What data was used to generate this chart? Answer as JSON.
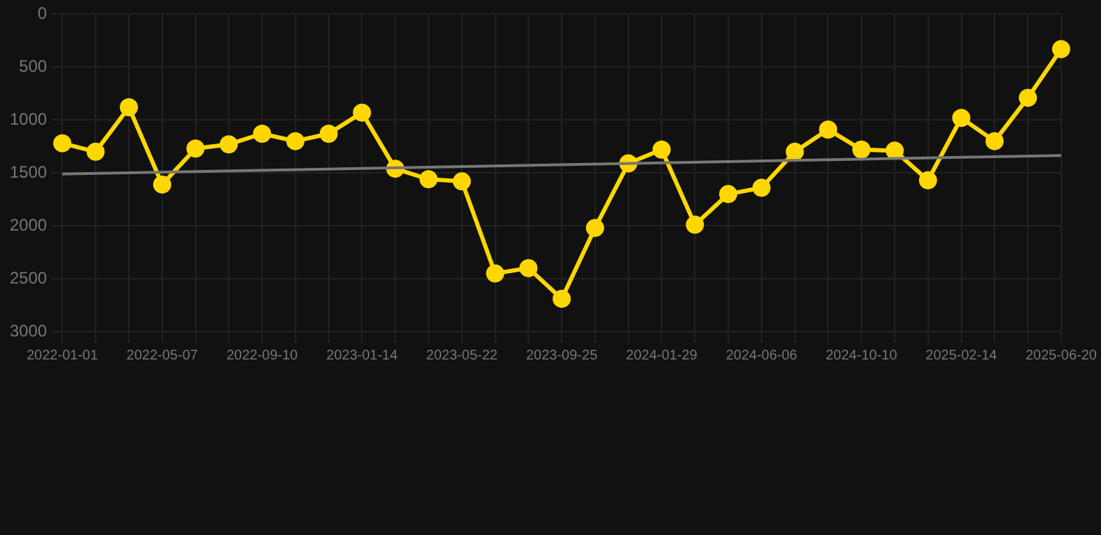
{
  "chart_data": {
    "type": "line",
    "categories": [
      "2022-01-01",
      null,
      null,
      "2022-05-07",
      null,
      null,
      "2022-09-10",
      null,
      null,
      "2023-01-14",
      null,
      null,
      "2023-05-22",
      null,
      null,
      "2023-09-25",
      null,
      null,
      "2024-01-29",
      null,
      null,
      "2024-06-06",
      null,
      null,
      "2024-10-10",
      null,
      null,
      "2025-02-14",
      null,
      null,
      "2025-06-20"
    ],
    "series": [
      {
        "color": "#ffd700",
        "marker": "circle",
        "values": [
          1220,
          1300,
          880,
          1610,
          1270,
          1230,
          1130,
          1200,
          1130,
          930,
          1460,
          1560,
          1580,
          2450,
          2400,
          2690,
          2020,
          1410,
          1280,
          1990,
          1700,
          1640,
          1300,
          1090,
          1280,
          1290,
          1570,
          980,
          1200,
          790,
          330
        ]
      },
      {
        "color": "#777777",
        "marker": "none",
        "values": [
          1510,
          null,
          null,
          null,
          null,
          null,
          null,
          null,
          null,
          null,
          null,
          null,
          null,
          null,
          null,
          null,
          null,
          null,
          null,
          null,
          null,
          null,
          null,
          null,
          null,
          null,
          null,
          null,
          null,
          null,
          1335
        ]
      }
    ],
    "ylim": [
      3000,
      0
    ],
    "yticks": [
      0,
      500,
      1000,
      1500,
      2000,
      2500,
      3000
    ],
    "grid": true,
    "legend": false
  }
}
